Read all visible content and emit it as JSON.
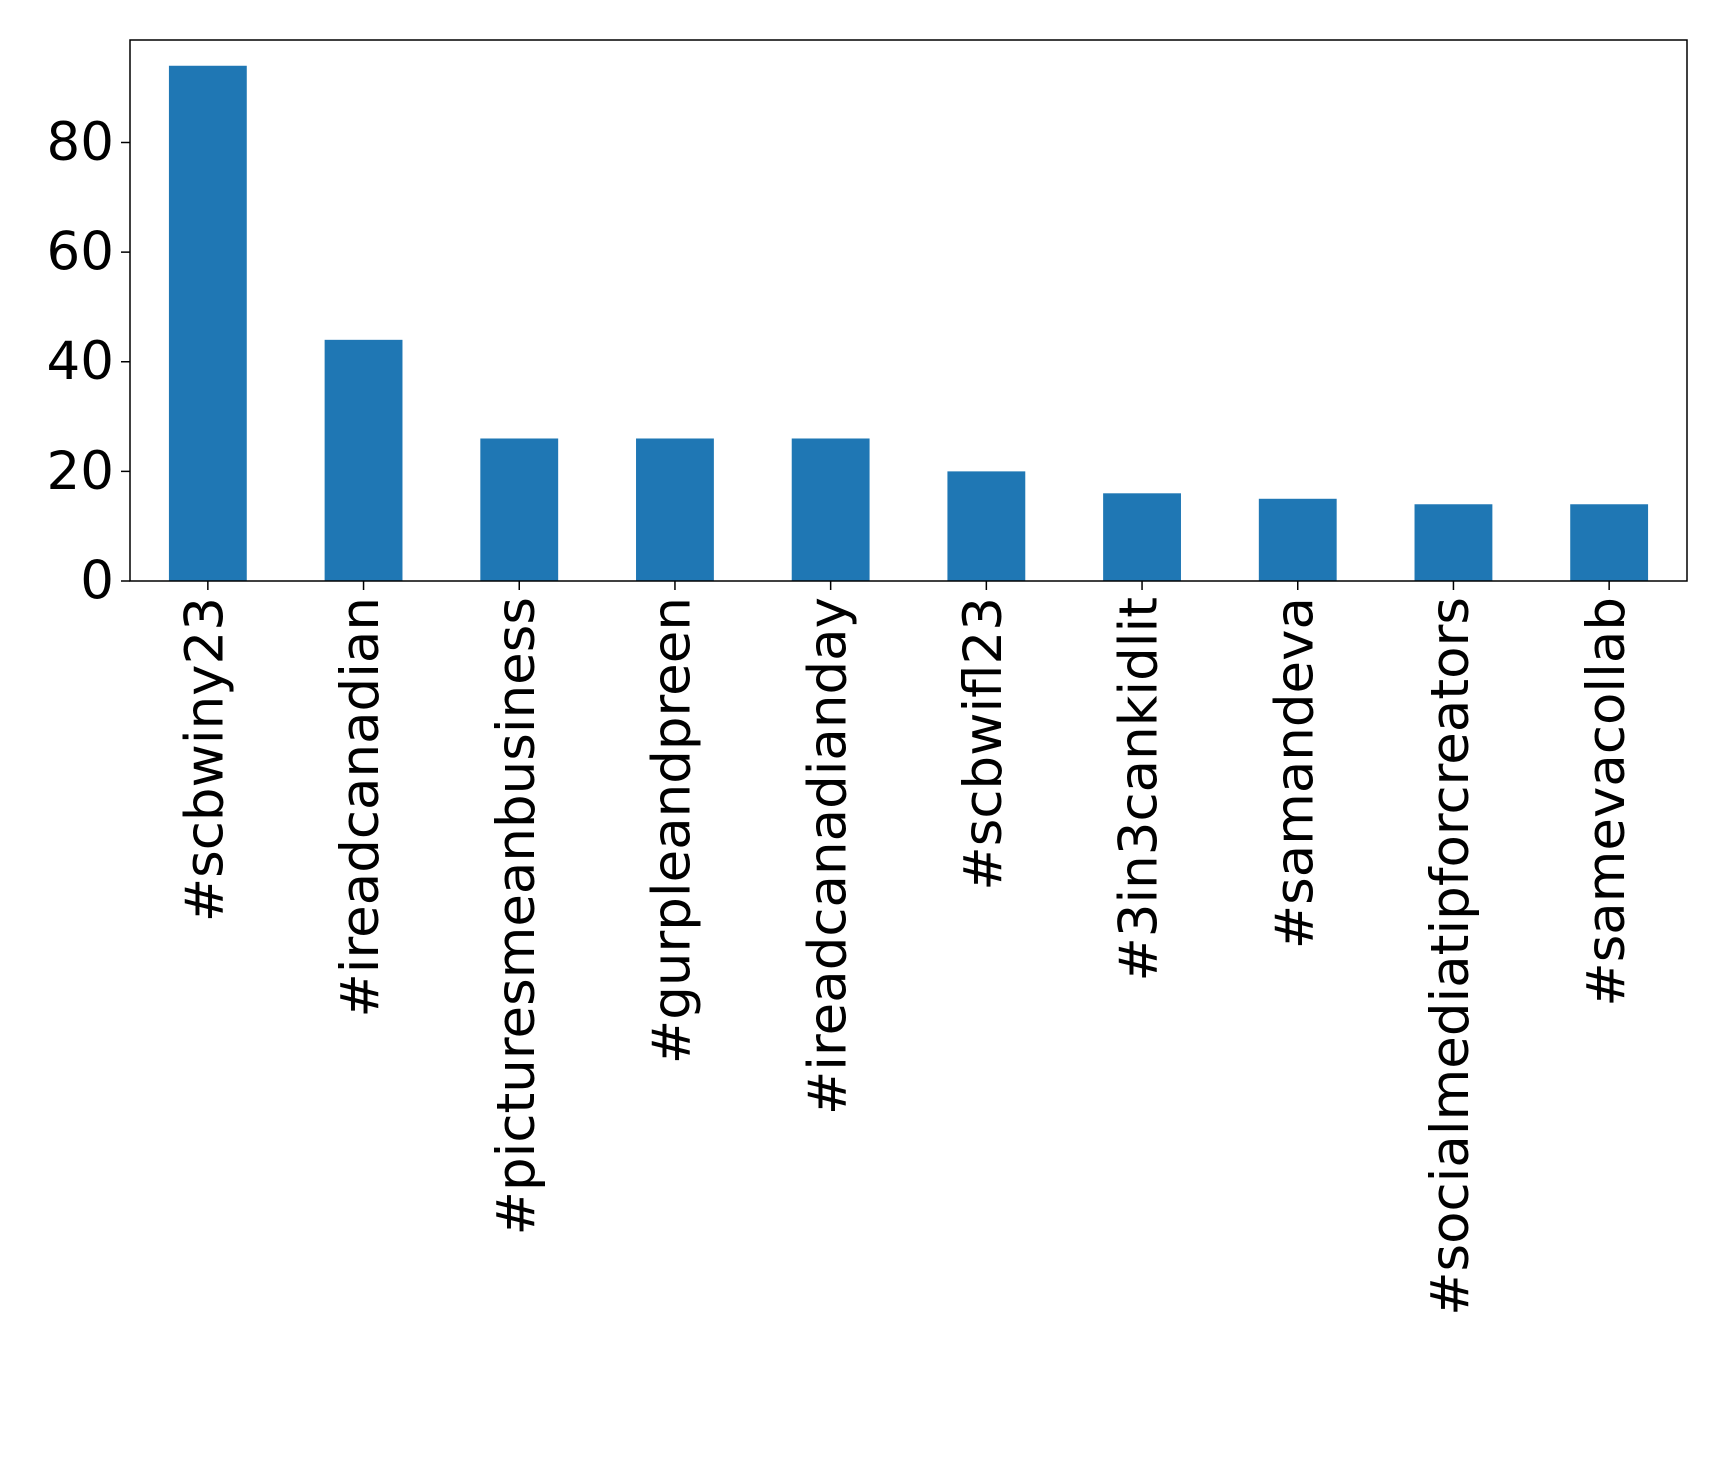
{
  "chart_data": {
    "type": "bar",
    "categories": [
      "#scbwiny23",
      "#ireadcanadian",
      "#picturesmeanbusiness",
      "#gurpleandpreen",
      "#ireadcanadianday",
      "#scbwifl23",
      "#3in3cankidlit",
      "#samandeva",
      "#socialmediatipforcreators",
      "#samevacollab"
    ],
    "values": [
      94,
      44,
      26,
      26,
      26,
      20,
      16,
      15,
      14,
      14
    ],
    "color": "#1f77b4",
    "ylim": [
      0,
      98.7
    ],
    "yticks": [
      0,
      20,
      40,
      60,
      80
    ],
    "grid": false
  }
}
